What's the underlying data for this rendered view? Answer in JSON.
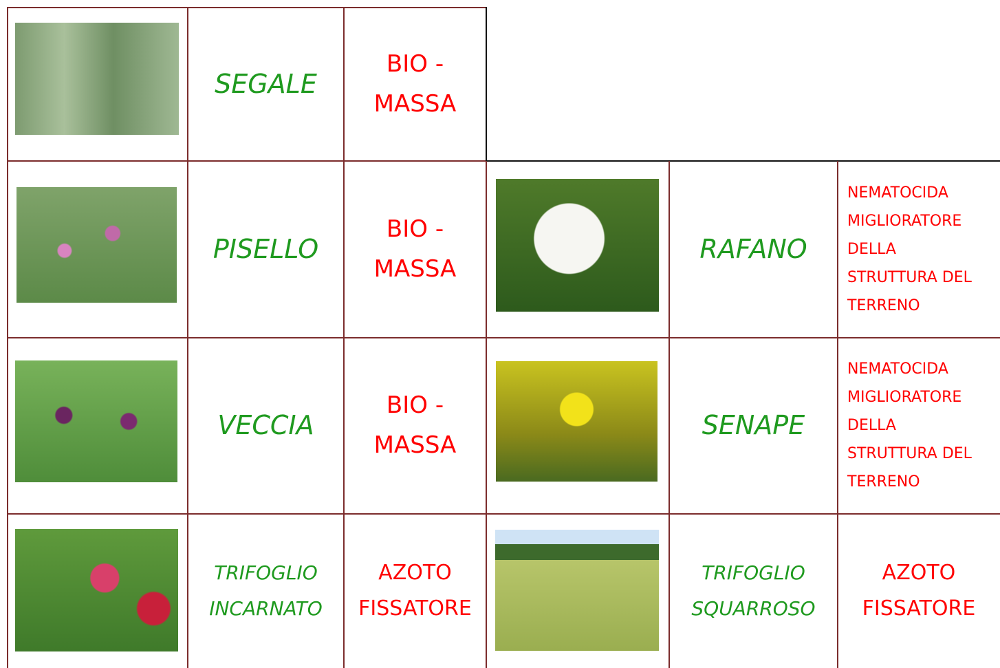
{
  "table": {
    "rows": [
      {
        "left": {
          "name": [
            "SEGALE"
          ],
          "use": [
            "BIO -",
            "MASSA"
          ]
        }
      },
      {
        "left": {
          "name": [
            "PISELLO"
          ],
          "use": [
            "BIO -",
            "MASSA"
          ]
        },
        "right": {
          "name": [
            "RAFANO"
          ],
          "use": [
            "NEMATOCIDA",
            "MIGLIORATORE",
            "DELLA",
            "STRUTTURA DEL",
            "TERRENO"
          ]
        }
      },
      {
        "left": {
          "name": [
            "VECCIA"
          ],
          "use": [
            "BIO -",
            "MASSA"
          ]
        },
        "right": {
          "name": [
            "SENAPE"
          ],
          "use": [
            "NEMATOCIDA",
            "MIGLIORATORE",
            "DELLA",
            "STRUTTURA DEL",
            "TERRENO"
          ]
        }
      },
      {
        "left": {
          "name": [
            "TRIFOGLIO",
            "INCARNATO"
          ],
          "use": [
            "AZOTO",
            "FISSATORE"
          ]
        },
        "right": {
          "name": [
            "TRIFOGLIO",
            "SQUARROSO"
          ],
          "use": [
            "AZOTO",
            "FISSATORE"
          ]
        }
      }
    ]
  }
}
